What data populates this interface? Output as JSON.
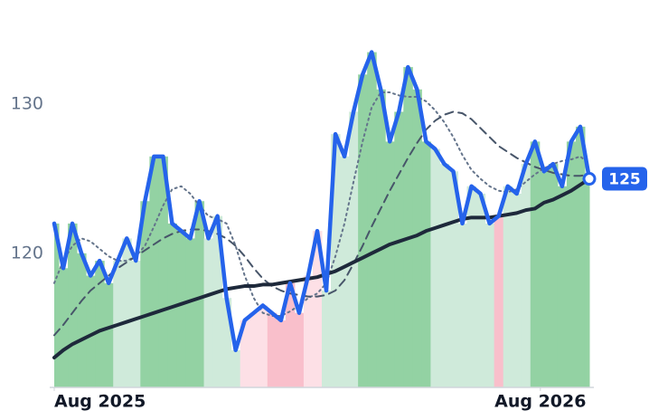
{
  "chart_data": {
    "type": "line",
    "xlim": [
      0,
      59
    ],
    "xticks": [
      {
        "value": 0,
        "label": "Aug 2025"
      },
      {
        "value": 53.6,
        "label": "Aug 2026"
      }
    ],
    "ylim": [
      111,
      137
    ],
    "yticks": [
      120,
      130
    ],
    "series": [
      {
        "color": "#2563eb",
        "values": [
          122,
          119,
          122,
          120,
          118.5,
          119.5,
          118,
          119.5,
          121,
          119.5,
          123.5,
          126.5,
          126.5,
          122,
          121.5,
          121,
          123.5,
          121,
          122.5,
          117,
          113.5,
          115.5,
          116,
          116.5,
          116,
          115.5,
          118,
          116,
          118.5,
          121.5,
          117.5,
          128,
          126.5,
          129.5,
          132,
          133.5,
          131,
          127.5,
          129.5,
          132.5,
          131,
          127.5,
          127,
          126,
          125.5,
          122,
          124.5,
          124,
          122,
          122.5,
          124.5,
          124,
          126,
          127.5,
          125.5,
          126,
          124.5,
          127.5,
          128.5,
          125
        ]
      },
      {
        "color": "#1e293b",
        "values": [
          113,
          113.5,
          113.9,
          114.2,
          114.5,
          114.8,
          115,
          115.2,
          115.4,
          115.6,
          115.8,
          116,
          116.2,
          116.4,
          116.6,
          116.8,
          117,
          117.2,
          117.4,
          117.6,
          117.7,
          117.8,
          117.8,
          117.9,
          117.9,
          118,
          118.1,
          118.2,
          118.3,
          118.4,
          118.6,
          118.8,
          119.1,
          119.4,
          119.7,
          120,
          120.3,
          120.6,
          120.8,
          121,
          121.2,
          121.5,
          121.7,
          121.9,
          122.1,
          122.3,
          122.4,
          122.4,
          122.4,
          122.5,
          122.6,
          122.7,
          122.9,
          123,
          123.4,
          123.6,
          123.9,
          124.2,
          124.6,
          125
        ]
      },
      {
        "color": "#475569",
        "dash": "9 6",
        "values": [
          114.5,
          115.2,
          116,
          116.8,
          117.5,
          118,
          118.5,
          119,
          119.4,
          119.8,
          120.2,
          120.6,
          121,
          121.3,
          121.5,
          121.6,
          121.6,
          121.5,
          121.3,
          121,
          120.5,
          119.8,
          119,
          118.3,
          117.8,
          117.5,
          117.3,
          117.2,
          117.1,
          117.1,
          117.2,
          117.5,
          118.2,
          119.3,
          120.5,
          121.8,
          123,
          124.2,
          125.3,
          126.4,
          127.4,
          128.3,
          128.9,
          129.3,
          129.5,
          129.4,
          129,
          128.4,
          127.8,
          127.2,
          126.8,
          126.4,
          126.1,
          125.8,
          125.6,
          125.4,
          125.3,
          125.2,
          125.2,
          125.3
        ]
      },
      {
        "color": "#64748b",
        "dash": "2 4",
        "values": [
          118,
          119.5,
          120.5,
          121,
          120.8,
          120.3,
          119.8,
          119.5,
          119.5,
          119.8,
          120.5,
          121.8,
          123.2,
          124.3,
          124.5,
          124,
          123.2,
          122.5,
          122.3,
          122,
          120.5,
          118.5,
          117,
          116,
          115.8,
          115.8,
          116.1,
          116.5,
          117,
          117.3,
          118,
          119.8,
          122,
          124.8,
          127.5,
          129.8,
          130.8,
          130.8,
          130.6,
          130.5,
          130.5,
          130.2,
          129.6,
          128.8,
          127.8,
          126.6,
          125.6,
          125,
          124.5,
          124.2,
          124.1,
          124.3,
          124.8,
          125.3,
          125.7,
          126,
          126.2,
          126.3,
          126.5,
          126
        ]
      }
    ],
    "zones": [
      {
        "start": 0,
        "end": 7,
        "color": "#93d2a3"
      },
      {
        "start": 7,
        "end": 10,
        "color": "#cfeada"
      },
      {
        "start": 10,
        "end": 17,
        "color": "#93d2a3"
      },
      {
        "start": 17,
        "end": 21,
        "color": "#cfeada"
      },
      {
        "start": 21,
        "end": 24,
        "color": "#fde0e6"
      },
      {
        "start": 24,
        "end": 28,
        "color": "#f9bfcb"
      },
      {
        "start": 28,
        "end": 30,
        "color": "#fde0e6"
      },
      {
        "start": 30,
        "end": 34,
        "color": "#cfeada"
      },
      {
        "start": 34,
        "end": 42,
        "color": "#93d2a3"
      },
      {
        "start": 42,
        "end": 49,
        "color": "#cfeada"
      },
      {
        "start": 49,
        "end": 50,
        "color": "#f9bfcb"
      },
      {
        "start": 50,
        "end": 53,
        "color": "#cfeada"
      },
      {
        "start": 53,
        "end": 60,
        "color": "#93d2a3"
      }
    ]
  }
}
